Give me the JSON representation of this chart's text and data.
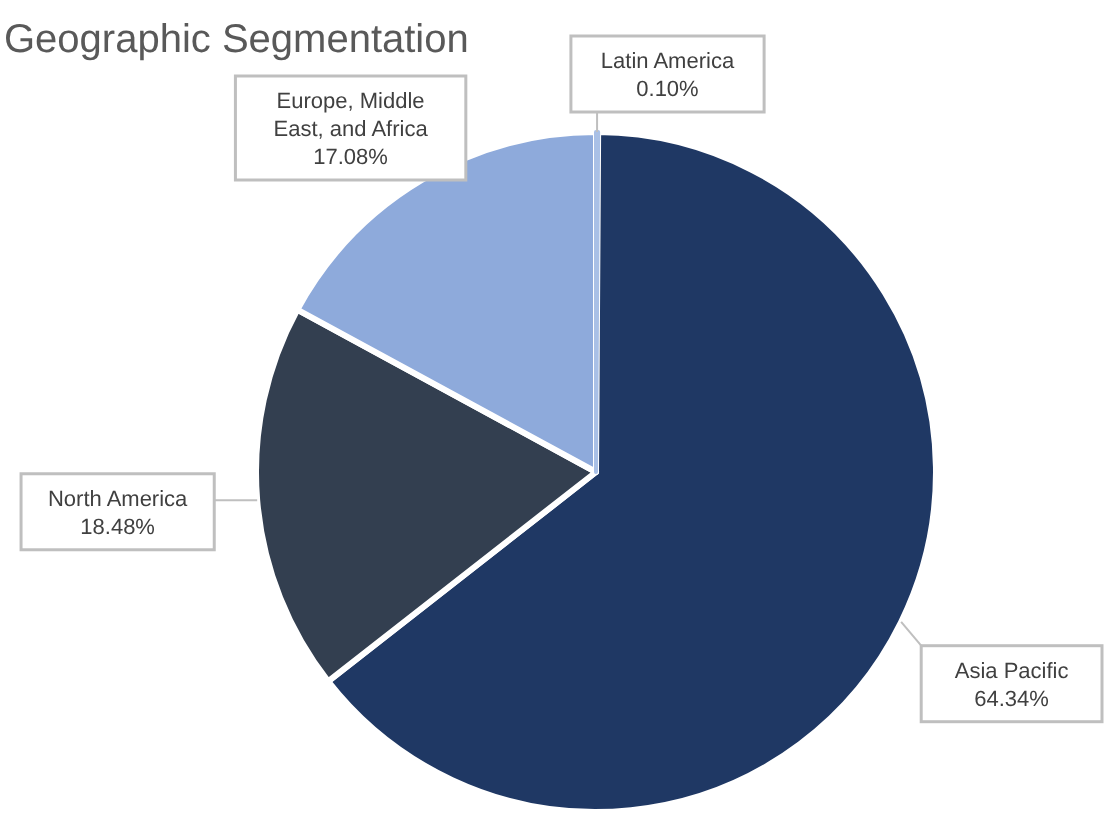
{
  "chart_data": {
    "type": "pie",
    "title": "Geographic Segmentation",
    "categories": [
      "Latin America",
      "Asia Pacific",
      "North America",
      "Europe, Middle East, and Africa"
    ],
    "values": [
      0.1,
      64.34,
      18.48,
      17.08
    ],
    "colors": [
      "#a9c0e6",
      "#1f3864",
      "#333f50",
      "#8eaadb"
    ],
    "value_labels": [
      "0.10%",
      "64.34%",
      "18.48%",
      "17.08%"
    ]
  }
}
